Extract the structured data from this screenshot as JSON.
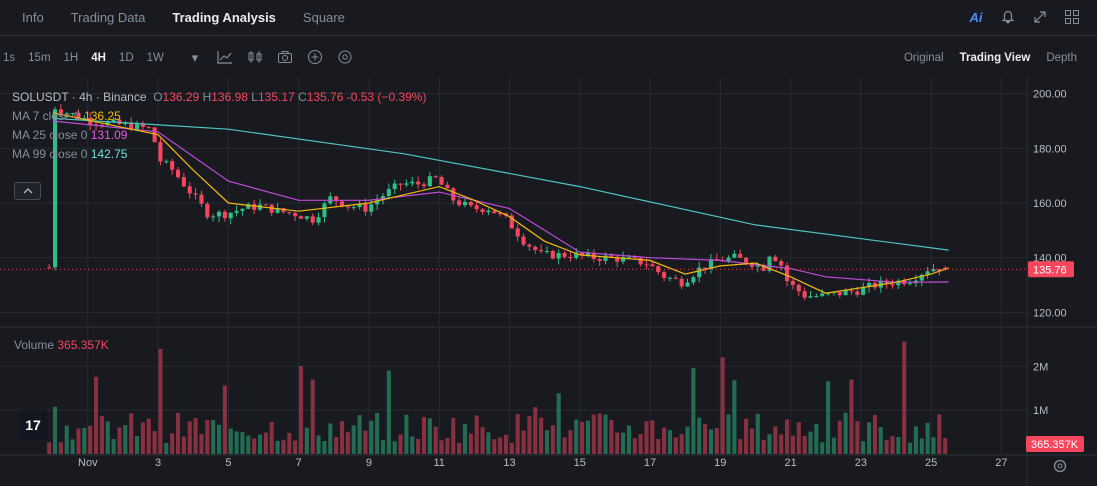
{
  "tabs": [
    "Info",
    "Trading Data",
    "Trading Analysis",
    "Square"
  ],
  "active_tab": "Trading Analysis",
  "intervals": [
    "1s",
    "15m",
    "1H",
    "4H",
    "1D",
    "1W"
  ],
  "active_interval": "4H",
  "views": [
    "Original",
    "Trading View",
    "Depth"
  ],
  "active_view": "Trading View",
  "legend": {
    "title": "SOLUSDT · 4h · Binance",
    "o_label": "O",
    "o": "136.29",
    "h_label": "H",
    "h": "136.98",
    "l_label": "L",
    "l": "135.17",
    "c_label": "C",
    "c": "135.76",
    "change": "-0.53 (−0.39%)",
    "ma7_label": "MA 7 close 0",
    "ma7": "136.25",
    "ma25_label": "MA 25 close 0",
    "ma25": "131.09",
    "ma99_label": "MA 99 close 0",
    "ma99": "142.75",
    "volume_label": "Volume",
    "volume": "365.357K"
  },
  "logo_text": "17",
  "colors": {
    "up": "#2ebd85",
    "down": "#f6465d",
    "ma7": "#f0b90b",
    "ma25": "#c04bd8",
    "ma99": "#4fc4c4",
    "ma99_value": "#6ee1e1",
    "ma25_value": "#e25ce0",
    "ma7_value": "#f0b90b",
    "background": "#181a20",
    "grid": "#262a31"
  },
  "icons": [
    "chart-type-icon",
    "indicators-icon",
    "camera-icon",
    "add-icon",
    "settings-icon"
  ],
  "chart_data": {
    "type": "candlestick",
    "price_axis": {
      "ticks": [
        "200.00",
        "180.00",
        "160.00",
        "140.00",
        "120.00"
      ],
      "range": [
        115,
        205
      ]
    },
    "volume_axis": {
      "ticks": [
        "2M",
        "1M"
      ],
      "range": [
        0,
        2600000
      ]
    },
    "x_axis": {
      "ticks": [
        "Nov",
        "3",
        "5",
        "7",
        "9",
        "11",
        "13",
        "15",
        "17",
        "19",
        "21",
        "23",
        "25",
        "27"
      ],
      "range": [
        -1.5,
        27.7
      ]
    },
    "last_price_label": "135.76",
    "last_volume_label": "365.357K",
    "anchors": [
      [
        0,
        196
      ],
      [
        0.5,
        193
      ],
      [
        1.2,
        190
      ],
      [
        1.8,
        189
      ],
      [
        2.4,
        188
      ],
      [
        2.9,
        187
      ],
      [
        3.1,
        176
      ],
      [
        3.5,
        172
      ],
      [
        4.0,
        164
      ],
      [
        4.5,
        156
      ],
      [
        5.0,
        156
      ],
      [
        5.5,
        158
      ],
      [
        6.0,
        159
      ],
      [
        6.5,
        157
      ],
      [
        7.0,
        156
      ],
      [
        7.5,
        154
      ],
      [
        8.0,
        162
      ],
      [
        8.5,
        159
      ],
      [
        9.0,
        158
      ],
      [
        9.5,
        163
      ],
      [
        10.0,
        167
      ],
      [
        10.5,
        167
      ],
      [
        11.0,
        169
      ],
      [
        11.5,
        161
      ],
      [
        12.0,
        158
      ],
      [
        12.5,
        158
      ],
      [
        13.0,
        154
      ],
      [
        13.5,
        146
      ],
      [
        14.0,
        141
      ],
      [
        14.5,
        141
      ],
      [
        15.0,
        141
      ],
      [
        15.5,
        140
      ],
      [
        16.0,
        140
      ],
      [
        16.5,
        139
      ],
      [
        17.0,
        138
      ],
      [
        17.5,
        133
      ],
      [
        18.0,
        131
      ],
      [
        18.5,
        136
      ],
      [
        19.0,
        139
      ],
      [
        19.5,
        140
      ],
      [
        20.0,
        138
      ],
      [
        20.3,
        136
      ],
      [
        20.5,
        142
      ],
      [
        20.8,
        138
      ],
      [
        21.0,
        131
      ],
      [
        21.5,
        126
      ],
      [
        22.0,
        126
      ],
      [
        22.5,
        127
      ],
      [
        23.0,
        128
      ],
      [
        23.5,
        130
      ],
      [
        24.0,
        131
      ],
      [
        24.5,
        132
      ],
      [
        25.0,
        136
      ],
      [
        25.5,
        136.5
      ]
    ],
    "ma99_curve": [
      [
        0,
        191
      ],
      [
        5,
        187
      ],
      [
        10,
        178
      ],
      [
        15,
        166
      ],
      [
        20,
        152
      ],
      [
        25.5,
        142.75
      ]
    ],
    "ma25_curve": [
      [
        0,
        190
      ],
      [
        3,
        186
      ],
      [
        5,
        168
      ],
      [
        7,
        161
      ],
      [
        9,
        161
      ],
      [
        11,
        164
      ],
      [
        13,
        158
      ],
      [
        14,
        150
      ],
      [
        15,
        142
      ],
      [
        17,
        140
      ],
      [
        19,
        139
      ],
      [
        21,
        136
      ],
      [
        22,
        133
      ],
      [
        24,
        131
      ],
      [
        25.5,
        131.09
      ]
    ],
    "ma7_curve": [
      [
        0,
        193
      ],
      [
        3,
        185
      ],
      [
        4,
        172
      ],
      [
        5,
        160
      ],
      [
        7,
        157
      ],
      [
        9,
        160
      ],
      [
        11,
        166
      ],
      [
        12,
        161
      ],
      [
        13,
        155
      ],
      [
        14,
        146
      ],
      [
        15,
        141
      ],
      [
        17,
        139
      ],
      [
        18,
        134
      ],
      [
        19,
        137
      ],
      [
        20,
        138
      ],
      [
        21,
        133
      ],
      [
        22,
        127
      ],
      [
        24,
        131
      ],
      [
        25,
        134
      ],
      [
        25.5,
        136.25
      ]
    ]
  }
}
